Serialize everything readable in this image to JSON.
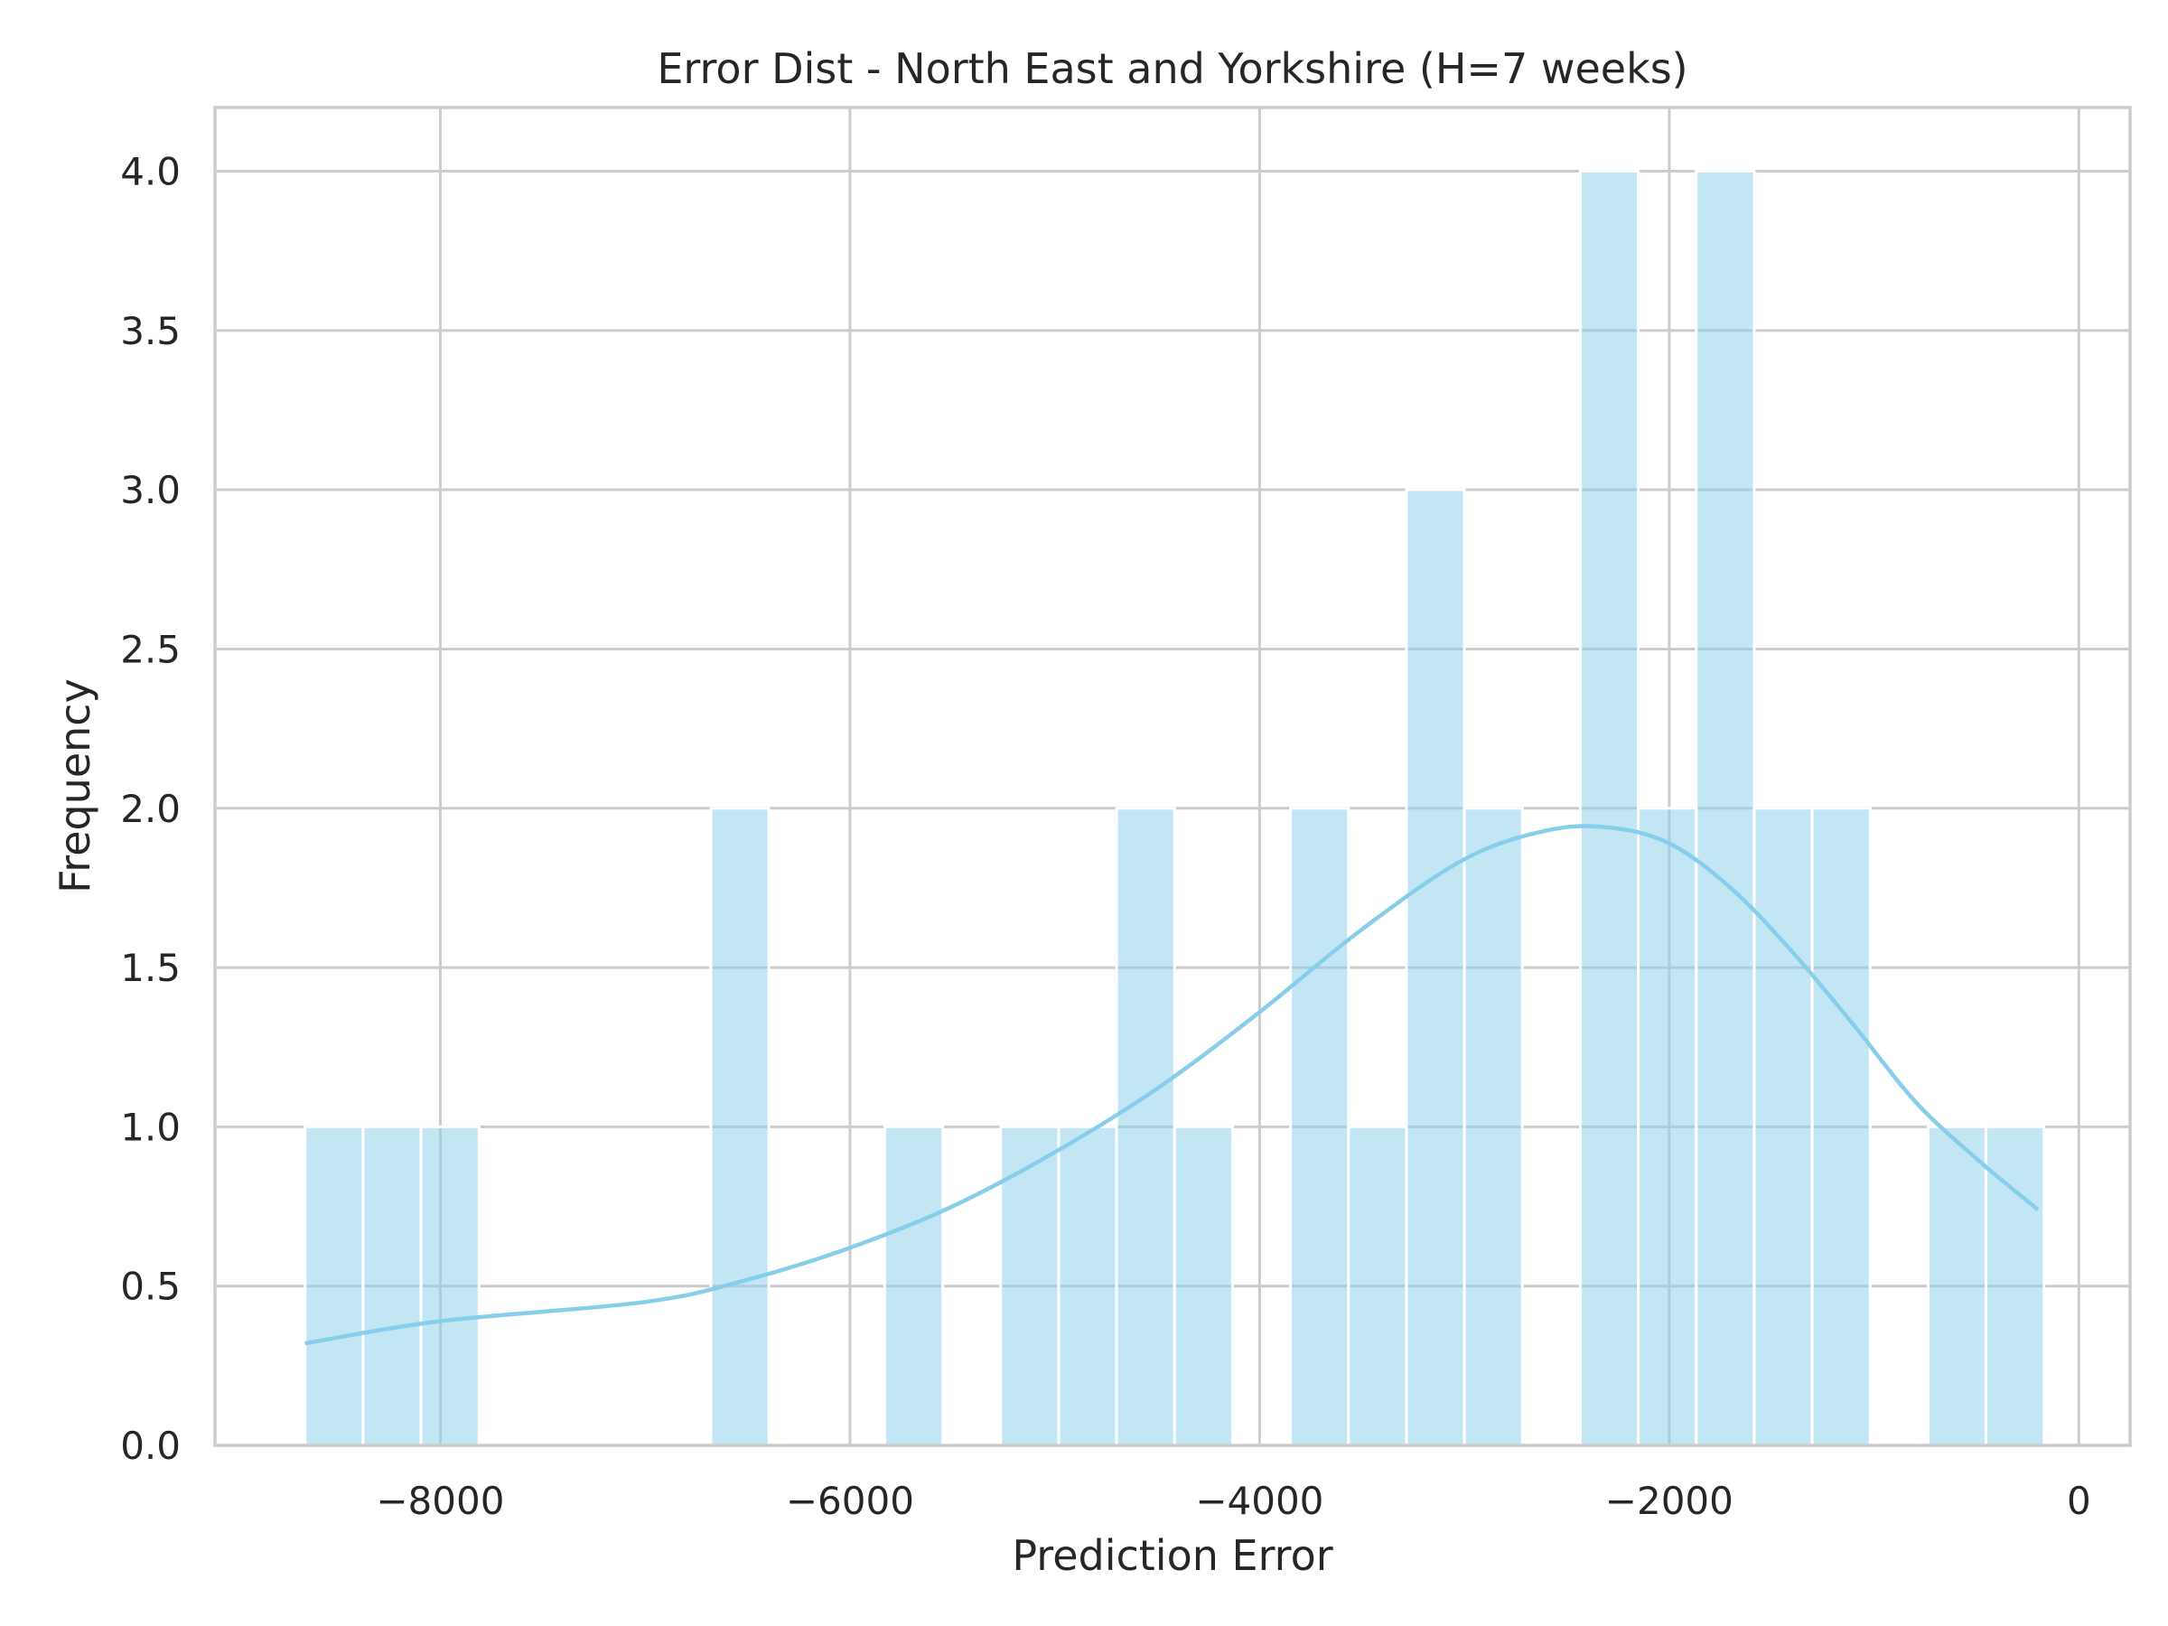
{
  "chart_data": {
    "type": "bar",
    "title": "Error Dist - North East and Yorkshire (H=7 weeks)",
    "xlabel": "Prediction Error",
    "ylabel": "Frequency",
    "xlim": [
      -9100,
      250
    ],
    "ylim": [
      0,
      4.2
    ],
    "x_ticks": [
      -8000,
      -6000,
      -4000,
      -2000,
      0
    ],
    "x_tick_labels": [
      "−8000",
      "−6000",
      "−4000",
      "−2000",
      "0"
    ],
    "y_ticks": [
      0.0,
      0.5,
      1.0,
      1.5,
      2.0,
      2.5,
      3.0,
      3.5,
      4.0
    ],
    "y_tick_labels": [
      "0.0",
      "0.5",
      "1.0",
      "1.5",
      "2.0",
      "2.5",
      "3.0",
      "3.5",
      "4.0"
    ],
    "grid": true,
    "bin_edges": [
      -8660,
      -8377,
      -8094,
      -7811,
      -7528,
      -7245,
      -6962,
      -6679,
      -6396,
      -6113,
      -5830,
      -5547,
      -5264,
      -4981,
      -4698,
      -4415,
      -4132,
      -3849,
      -3566,
      -3283,
      -3000,
      -2717,
      -2434,
      -2151,
      -1868,
      -1585,
      -1302,
      -1019,
      -736,
      -453,
      -170
    ],
    "counts": [
      1,
      1,
      1,
      0,
      0,
      0,
      0,
      2,
      0,
      0,
      1,
      0,
      1,
      1,
      2,
      1,
      0,
      2,
      1,
      3,
      2,
      0,
      4,
      2,
      4,
      2,
      2,
      0,
      1,
      1
    ],
    "kde": {
      "x": [
        -8660,
        -8000,
        -7000,
        -6500,
        -6000,
        -5500,
        -5000,
        -4500,
        -4000,
        -3500,
        -3000,
        -2600,
        -2300,
        -2000,
        -1700,
        -1400,
        -1100,
        -800,
        -500,
        -200
      ],
      "y": [
        0.32,
        0.39,
        0.45,
        0.52,
        0.62,
        0.75,
        0.92,
        1.12,
        1.36,
        1.62,
        1.84,
        1.93,
        1.94,
        1.89,
        1.75,
        1.55,
        1.32,
        1.08,
        0.9,
        0.74
      ]
    },
    "colors": {
      "bar": "#87ceeb",
      "kde": "#87ceeb",
      "grid": "#cccccc",
      "text": "#262626"
    }
  }
}
